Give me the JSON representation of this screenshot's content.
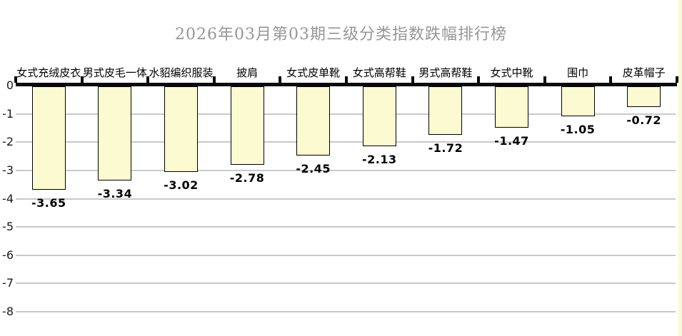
{
  "chart_data": {
    "type": "bar",
    "title": "2026年03月第03期三级分类指数跌幅排行榜",
    "categories": [
      "女式充绒皮衣",
      "男式皮毛一体",
      "水貂编织服装",
      "披肩",
      "女式皮单靴",
      "女式高帮鞋",
      "男式高帮鞋",
      "女式中靴",
      "围巾",
      "皮革帽子"
    ],
    "values": [
      -3.65,
      -3.34,
      -3.02,
      -2.78,
      -2.45,
      -2.13,
      -1.72,
      -1.47,
      -1.05,
      -0.72
    ],
    "value_labels": [
      "-3.65",
      "-3.34",
      "-3.02",
      "-2.78",
      "-2.45",
      "-2.13",
      "-1.72",
      "-1.47",
      "-1.05",
      "-0.72"
    ],
    "xlabel": "",
    "ylabel": "",
    "ylim": [
      -8,
      0
    ],
    "y_ticks": [
      "0",
      "-1",
      "-2",
      "-3",
      "-4",
      "-5",
      "-6",
      "-7",
      "-8"
    ],
    "grid": "horizontal",
    "legend": "none",
    "category_labels_position": "above-axis",
    "value_labels_position": "below-bar"
  },
  "colors": {
    "background": "#FFFFFF",
    "bar_fill": "#FCFAD0",
    "bar_border": "#000000",
    "gridline": "#C9C9C9",
    "axis": "#0A0A0A",
    "title_text": "#969696",
    "category_text": "#000000",
    "value_text": "#000000",
    "ytick_text": "#1A1A1A",
    "edge_strip": "#FBF9D2"
  }
}
